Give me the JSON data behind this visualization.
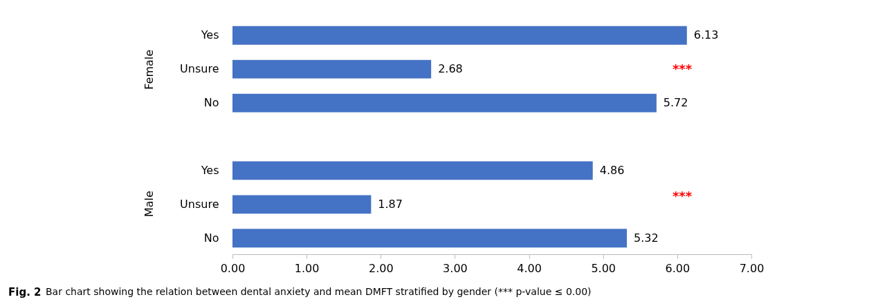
{
  "chart_data": {
    "type": "bar",
    "orientation": "horizontal",
    "categories": [
      "Yes",
      "Unsure",
      "No",
      null,
      "Yes",
      "Unsure",
      "No"
    ],
    "values": [
      6.13,
      2.68,
      5.72,
      null,
      4.86,
      1.87,
      5.32
    ],
    "color": "#4472c4",
    "xlim": [
      0,
      7
    ],
    "xticks": [
      {
        "value": 0,
        "label": "0.00"
      },
      {
        "value": 1,
        "label": "1.00"
      },
      {
        "value": 2,
        "label": "2.00"
      },
      {
        "value": 3,
        "label": "3.00"
      },
      {
        "value": 4,
        "label": "4.00"
      },
      {
        "value": 5,
        "label": "5.00"
      },
      {
        "value": 6,
        "label": "6.00"
      },
      {
        "value": 7,
        "label": "7.00"
      }
    ],
    "data_labels": true,
    "grid": false,
    "annotations": [
      "***",
      "***",
      "Female",
      "Male",
      "Fig. 2",
      "Bar chart showing the relation between dental anxiety and mean DMFT stratified by gender (*** p-value ≤ 0.00)"
    ]
  }
}
